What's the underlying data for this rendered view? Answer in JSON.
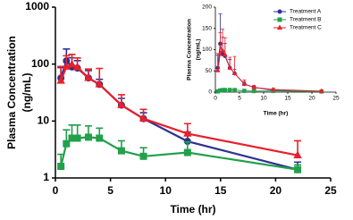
{
  "chart_data": [
    {
      "type": "line",
      "xlabel": "Time (hr)",
      "ylabel": [
        "Plasma  Concentration",
        "(ng/mL)"
      ],
      "x": [
        0.5,
        1,
        1.5,
        2,
        3,
        4,
        6,
        8,
        12,
        22
      ],
      "xlim": [
        0,
        25
      ],
      "xticks": [
        0,
        5,
        10,
        15,
        20,
        25
      ],
      "ylim": [
        1,
        1000
      ],
      "yticks": [
        1,
        10,
        100,
        1000
      ],
      "ylog": true,
      "series": [
        {
          "name": "Treatment A",
          "color": "#2e3192",
          "marker": "circle",
          "values": [
            57,
            114,
            89,
            85,
            57,
            44,
            19,
            11,
            4.4,
            1.4
          ],
          "errors": [
            30,
            70,
            40,
            30,
            20,
            10,
            6,
            3,
            2,
            0.5
          ]
        },
        {
          "name": "Treatment B",
          "color": "#22a04b",
          "marker": "square",
          "values": [
            1.6,
            4,
            5,
            5,
            5.2,
            5,
            3,
            2.4,
            2.8,
            1.4
          ],
          "errors": [
            1,
            3,
            3.5,
            3.5,
            3,
            2.5,
            1.5,
            1,
            1.5,
            0.3
          ]
        },
        {
          "name": "Treatment C",
          "color": "#e8202a",
          "marker": "triangle",
          "values": [
            51,
            90,
            98,
            88,
            57,
            44,
            19,
            11,
            6,
            2.5
          ],
          "errors": [
            40,
            50,
            50,
            40,
            25,
            40,
            10,
            5,
            3,
            2
          ]
        }
      ]
    },
    {
      "type": "line",
      "xlabel": "Time (hr)",
      "ylabel": [
        "Plasma  Concentration",
        "(ng/mL)"
      ],
      "x": [
        0.5,
        1,
        1.5,
        2,
        3,
        4,
        6,
        8,
        12,
        22
      ],
      "xlim": [
        0,
        25
      ],
      "xticks": [
        0,
        5,
        10,
        15,
        20,
        25
      ],
      "ylim": [
        0,
        200
      ],
      "yticks": [
        0,
        50,
        100,
        150,
        200
      ],
      "ylog": false,
      "legend": "upper right",
      "series": [
        {
          "name": "Treatment A",
          "color": "#2e3192",
          "marker": "circle",
          "values": [
            57,
            114,
            89,
            85,
            57,
            44,
            19,
            11,
            4.4,
            1.4
          ],
          "errors": [
            30,
            70,
            40,
            30,
            20,
            10,
            6,
            3,
            2,
            0.5
          ]
        },
        {
          "name": "Treatment B",
          "color": "#22a04b",
          "marker": "square",
          "values": [
            1.6,
            4,
            5,
            5,
            5.2,
            5,
            3,
            2.4,
            2.8,
            1.4
          ],
          "errors": [
            1,
            3,
            3.5,
            3.5,
            3,
            2.5,
            1.5,
            1,
            1.5,
            0.3
          ]
        },
        {
          "name": "Treatment C",
          "color": "#e8202a",
          "marker": "triangle",
          "values": [
            51,
            90,
            98,
            88,
            57,
            44,
            19,
            11,
            6,
            2.5
          ],
          "errors": [
            40,
            50,
            50,
            40,
            25,
            40,
            10,
            5,
            3,
            2
          ]
        }
      ]
    }
  ]
}
